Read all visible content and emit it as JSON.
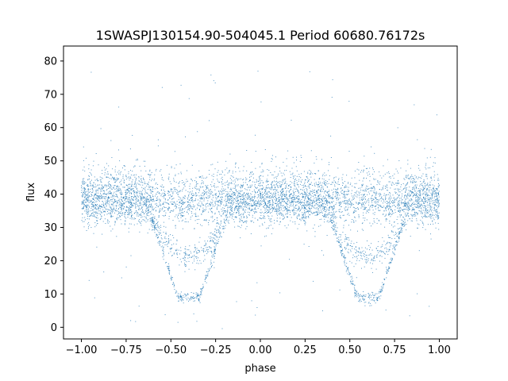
{
  "chart_data": {
    "type": "scatter",
    "title": "1SWASPJ130154.90-504045.1 Period 60680.76172s",
    "xlabel": "phase",
    "ylabel": "flux",
    "xlim": [
      -1.1,
      1.1
    ],
    "ylim": [
      -3.5,
      84.5
    ],
    "x_ticks": [
      -1.0,
      -0.75,
      -0.5,
      -0.25,
      0.0,
      0.25,
      0.5,
      0.75,
      1.0
    ],
    "x_tick_labels": [
      "−1.00",
      "−0.75",
      "−0.50",
      "−0.25",
      "0.00",
      "0.25",
      "0.50",
      "0.75",
      "1.00"
    ],
    "y_ticks": [
      0,
      10,
      20,
      30,
      40,
      50,
      60,
      70,
      80
    ],
    "y_tick_labels": [
      "0",
      "10",
      "20",
      "30",
      "40",
      "50",
      "60",
      "70",
      "80"
    ],
    "grid": false,
    "legend": "none",
    "marker_color": "#1f77b4",
    "series": [
      {
        "phase_range": [
          -1.0,
          1.0
        ],
        "baseline_flux": 37,
        "baseline_spread": [
          30,
          58
        ],
        "primary_eclipse": {
          "phase_centers": [
            -0.4,
            0.6
          ],
          "min_flux": 9,
          "floor_phase_halfwidth": 0.06,
          "ingress_phase_width": 0.15
        },
        "secondary_track": {
          "phase_centers": [
            -0.4,
            0.6
          ],
          "min_flux": 21,
          "phase_halfwidth": 0.2
        }
      }
    ]
  }
}
